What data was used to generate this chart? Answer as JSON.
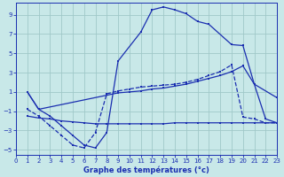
{
  "xlabel": "Graphe des températures (°c)",
  "bg_color": "#c8e8e8",
  "grid_color": "#a0c8c8",
  "line_color": "#1a2eb0",
  "xlim": [
    0,
    23
  ],
  "ylim": [
    -5.5,
    10.2
  ],
  "xticks": [
    0,
    1,
    2,
    3,
    4,
    5,
    6,
    7,
    8,
    9,
    10,
    11,
    12,
    13,
    14,
    15,
    16,
    17,
    18,
    19,
    20,
    21,
    22,
    23
  ],
  "yticks": [
    -5,
    -3,
    -1,
    1,
    3,
    5,
    7,
    9
  ],
  "line1_x": [
    1,
    2,
    3,
    4,
    5,
    6,
    7,
    8,
    9,
    11,
    12,
    13,
    14,
    15,
    16,
    17,
    19,
    20,
    21,
    23
  ],
  "line1_y": [
    1.0,
    -0.8,
    -1.5,
    -2.5,
    -3.5,
    -4.5,
    -4.8,
    -3.2,
    4.2,
    7.2,
    9.5,
    9.8,
    9.5,
    9.1,
    8.3,
    8.0,
    5.9,
    5.8,
    1.8,
    0.4
  ],
  "line2_x": [
    1,
    2,
    9,
    10,
    11,
    12,
    13,
    14,
    15,
    16,
    17,
    18,
    19,
    20,
    21,
    22,
    23
  ],
  "line2_y": [
    1.0,
    -0.8,
    0.9,
    1.0,
    1.1,
    1.3,
    1.4,
    1.6,
    1.8,
    2.1,
    2.4,
    2.7,
    3.1,
    3.7,
    1.8,
    -1.8,
    -2.2
  ],
  "line3_x": [
    1,
    2,
    3,
    4,
    5,
    6,
    7,
    8,
    9,
    10,
    11,
    12,
    13,
    14,
    15,
    16,
    17,
    18,
    19,
    20,
    21,
    22,
    23
  ],
  "line3_y": [
    -1.5,
    -1.7,
    -1.8,
    -2.0,
    -2.1,
    -2.2,
    -2.3,
    -2.3,
    -2.3,
    -2.3,
    -2.3,
    -2.3,
    -2.3,
    -2.2,
    -2.2,
    -2.2,
    -2.2,
    -2.2,
    -2.2,
    -2.2,
    -2.2,
    -2.2,
    -2.2
  ],
  "dashed_x": [
    1,
    2,
    3,
    4,
    5,
    6,
    7,
    8,
    9,
    10,
    11,
    12,
    13,
    14,
    15,
    16,
    17,
    18,
    19,
    20,
    21,
    22,
    23
  ],
  "dashed_y": [
    -0.8,
    -1.5,
    -2.5,
    -3.5,
    -4.5,
    -4.8,
    -3.2,
    0.8,
    1.1,
    1.3,
    1.5,
    1.6,
    1.7,
    1.8,
    2.0,
    2.3,
    2.7,
    3.1,
    3.8,
    -1.6,
    -1.8,
    -2.2,
    -2.2
  ]
}
